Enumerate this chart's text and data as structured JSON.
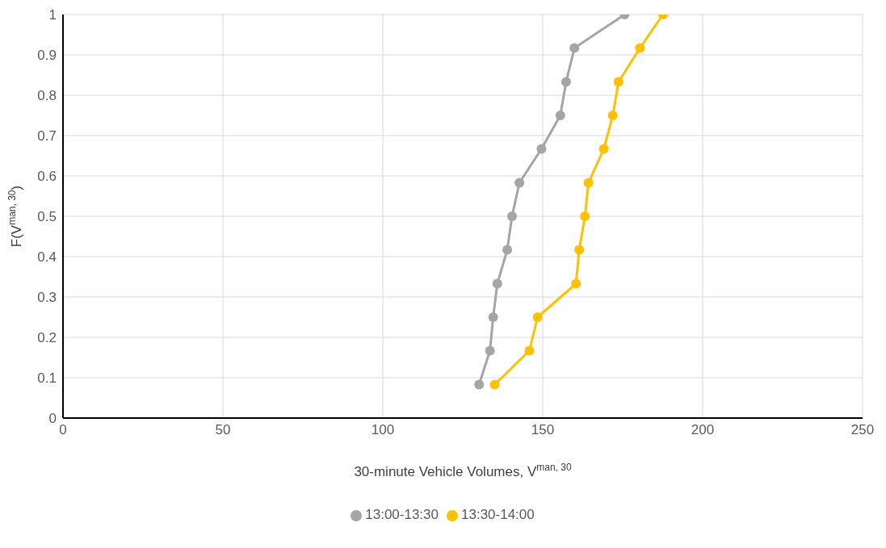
{
  "chart_data": {
    "type": "line",
    "xlabel": "30-minute Vehicle Volumes, V$^{man, 30}$",
    "ylabel": "F(V$^{man, 30}$)",
    "xlim": [
      0,
      250
    ],
    "xticks": [
      0,
      50,
      100,
      150,
      200,
      250
    ],
    "ylim": [
      0,
      1
    ],
    "yticks": [
      0,
      {
        "value": 0.1,
        "label": "0.1"
      },
      {
        "value": 0.2,
        "label": "0.2"
      },
      {
        "value": 0.3,
        "label": "0.3"
      },
      {
        "value": 0.4,
        "label": "0.4"
      },
      {
        "value": 0.5,
        "label": "0.5"
      },
      {
        "value": 0.6,
        "label": "0.6"
      },
      {
        "value": 0.7,
        "label": "0.7"
      },
      {
        "value": 0.8,
        "label": "0.8"
      },
      {
        "value": 0.9,
        "label": "0.9"
      },
      1
    ],
    "grid": true,
    "legend": "bottom",
    "marker": "circle",
    "line_style": "solid",
    "series": [
      {
        "name": "13:00-13:30",
        "color": "#a5a5a5",
        "x": [
          130.1,
          133.5,
          134.5,
          135.8,
          138.9,
          140.4,
          142.7,
          149.6,
          155.5,
          157.3,
          159.9,
          175.6
        ],
        "values": [
          0.083,
          0.167,
          0.25,
          0.333,
          0.417,
          0.5,
          0.583,
          0.667,
          0.75,
          0.833,
          0.917,
          1
        ]
      },
      {
        "name": "13:30-14:00",
        "color": "#ffc000",
        "x": [
          135.0,
          145.8,
          148.4,
          160.4,
          161.4,
          163.2,
          164.3,
          169.1,
          171.9,
          173.7,
          180.4,
          187.6
        ],
        "values": [
          0.083,
          0.167,
          0.25,
          0.333,
          0.417,
          0.5,
          0.583,
          0.667,
          0.75,
          0.833,
          0.917,
          1
        ]
      }
    ]
  }
}
